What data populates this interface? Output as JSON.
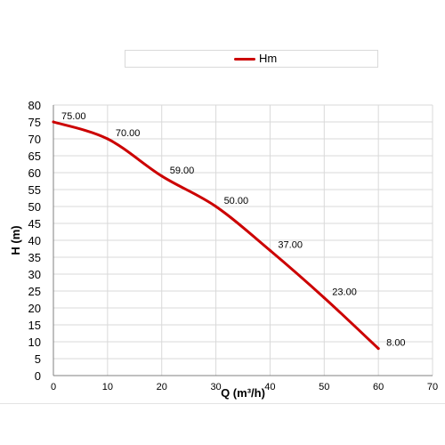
{
  "chart_data": {
    "type": "line",
    "xlabel": "Q (m³/h)",
    "ylabel": "H (m)",
    "xlim": [
      0,
      70
    ],
    "ylim": [
      0,
      80
    ],
    "x_ticks": [
      0,
      10,
      20,
      30,
      40,
      50,
      60,
      70
    ],
    "y_ticks": [
      0,
      5,
      10,
      15,
      20,
      25,
      30,
      35,
      40,
      45,
      50,
      55,
      60,
      65,
      70,
      75,
      80
    ],
    "grid": true,
    "legend_position": "top",
    "series": [
      {
        "name": "Hm",
        "color": "#cc0000",
        "x": [
          0,
          10,
          20,
          30,
          40,
          50,
          60
        ],
        "values": [
          75,
          70,
          59,
          50,
          37,
          23,
          8
        ],
        "point_labels": [
          "75.00",
          "70.00",
          "59.00",
          "50.00",
          "37.00",
          "23.00",
          "8.00"
        ]
      }
    ]
  }
}
